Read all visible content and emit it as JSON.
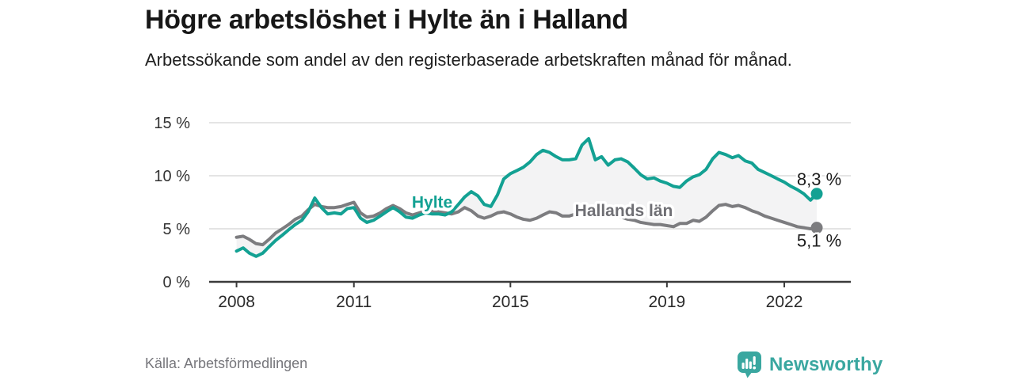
{
  "header": {
    "title": "Högre arbetslöshet i Hylte än i Halland",
    "subtitle": "Arbetssökande som andel av den registerbaserade arbetskraften månad för månad."
  },
  "footer": {
    "source": "Källa: Arbetsförmedlingen",
    "brand": "Newsworthy"
  },
  "colors": {
    "background": "#ffffff",
    "title_text": "#171717",
    "body_text": "#1f1f1f",
    "axis": "#3a3a3a",
    "tick_text": "#333333",
    "grid": "#dcdcdc",
    "fill_between": "#f3f3f4",
    "hylte_teal": "#13a193",
    "halland_gray": "#7c7c7f",
    "halland_label_gray": "#6f6f74",
    "value_label_text": "#1d1d1d",
    "source_text": "#76767b",
    "brand_teal": "#3aa7a0"
  },
  "chart_data": {
    "type": "line",
    "title": "Högre arbetslöshet i Hylte än i Halland",
    "subtitle": "Arbetssökande som andel av den registerbaserade arbetskraften månad för månad.",
    "xlabel": "",
    "ylabel": "",
    "unit": "%",
    "grid": "horizontal-only",
    "legend_position": "inline-labels-on-lines",
    "xlim": [
      2007.3,
      2023.7
    ],
    "ylim": [
      0,
      15
    ],
    "x_ticks": [
      {
        "value": 2008,
        "label": "2008"
      },
      {
        "value": 2011,
        "label": "2011"
      },
      {
        "value": 2015,
        "label": "2015"
      },
      {
        "value": 2019,
        "label": "2019"
      },
      {
        "value": 2022,
        "label": "2022"
      }
    ],
    "y_ticks": [
      {
        "value": 0,
        "label": "0 %"
      },
      {
        "value": 5,
        "label": "5 %"
      },
      {
        "value": 10,
        "label": "10 %"
      },
      {
        "value": 15,
        "label": "15 %"
      }
    ],
    "x": [
      2008.0,
      2008.17,
      2008.33,
      2008.5,
      2008.67,
      2008.83,
      2009.0,
      2009.17,
      2009.33,
      2009.5,
      2009.67,
      2009.83,
      2010.0,
      2010.17,
      2010.33,
      2010.5,
      2010.67,
      2010.83,
      2011.0,
      2011.17,
      2011.33,
      2011.5,
      2011.67,
      2011.83,
      2012.0,
      2012.17,
      2012.33,
      2012.5,
      2012.67,
      2012.83,
      2013.0,
      2013.17,
      2013.33,
      2013.5,
      2013.67,
      2013.83,
      2014.0,
      2014.17,
      2014.33,
      2014.5,
      2014.67,
      2014.83,
      2015.0,
      2015.17,
      2015.33,
      2015.5,
      2015.67,
      2015.83,
      2016.0,
      2016.17,
      2016.33,
      2016.5,
      2016.67,
      2016.83,
      2017.0,
      2017.17,
      2017.33,
      2017.5,
      2017.67,
      2017.83,
      2018.0,
      2018.17,
      2018.33,
      2018.5,
      2018.67,
      2018.83,
      2019.0,
      2019.17,
      2019.33,
      2019.5,
      2019.67,
      2019.83,
      2020.0,
      2020.17,
      2020.33,
      2020.5,
      2020.67,
      2020.83,
      2021.0,
      2021.17,
      2021.33,
      2021.5,
      2021.67,
      2021.83,
      2022.0,
      2022.17,
      2022.33,
      2022.5,
      2022.67,
      2022.83
    ],
    "series": [
      {
        "name": "Hylte",
        "color": "#13a193",
        "label_color": "#13a193",
        "end_label": "8,3 %",
        "end_value": 8.3,
        "label_anchor": {
          "x": 2013.0,
          "y": 7.4
        },
        "values": [
          2.9,
          3.2,
          2.7,
          2.4,
          2.7,
          3.3,
          3.9,
          4.4,
          4.9,
          5.4,
          5.8,
          6.6,
          7.9,
          7.0,
          6.4,
          6.5,
          6.4,
          6.9,
          7.0,
          6.0,
          5.6,
          5.8,
          6.2,
          6.6,
          7.0,
          6.6,
          6.1,
          6.0,
          6.3,
          6.5,
          6.4,
          6.4,
          6.3,
          6.6,
          7.3,
          8.0,
          8.5,
          8.1,
          7.3,
          7.1,
          8.2,
          9.7,
          10.2,
          10.5,
          10.8,
          11.3,
          12.0,
          12.4,
          12.2,
          11.8,
          11.5,
          11.5,
          11.6,
          12.9,
          13.5,
          11.5,
          11.8,
          11.0,
          11.5,
          11.6,
          11.3,
          10.7,
          10.1,
          9.7,
          9.8,
          9.5,
          9.3,
          9.0,
          8.9,
          9.5,
          9.9,
          10.1,
          10.6,
          11.6,
          12.2,
          12.0,
          11.7,
          11.9,
          11.4,
          11.2,
          10.6,
          10.3,
          10.0,
          9.7,
          9.4,
          9.0,
          8.7,
          8.3,
          7.7,
          8.3
        ]
      },
      {
        "name": "Hallands län",
        "color": "#7c7c7f",
        "label_color": "#6f6f74",
        "end_label": "5,1 %",
        "end_value": 5.1,
        "label_anchor": {
          "x": 2017.9,
          "y": 6.6
        },
        "values": [
          4.2,
          4.3,
          4.0,
          3.6,
          3.5,
          4.0,
          4.6,
          5.0,
          5.4,
          5.9,
          6.2,
          6.8,
          7.3,
          7.1,
          7.0,
          7.0,
          7.1,
          7.3,
          7.5,
          6.5,
          6.1,
          6.2,
          6.5,
          6.9,
          7.2,
          6.9,
          6.5,
          6.3,
          6.5,
          6.7,
          6.7,
          6.6,
          6.5,
          6.4,
          6.6,
          7.0,
          6.7,
          6.2,
          6.0,
          6.2,
          6.5,
          6.6,
          6.4,
          6.1,
          5.9,
          5.8,
          6.0,
          6.3,
          6.6,
          6.5,
          6.2,
          6.2,
          6.4,
          6.5,
          6.6,
          6.5,
          6.4,
          6.3,
          6.2,
          6.1,
          5.9,
          5.8,
          5.6,
          5.5,
          5.4,
          5.4,
          5.3,
          5.2,
          5.5,
          5.5,
          5.8,
          5.7,
          6.1,
          6.7,
          7.2,
          7.3,
          7.1,
          7.2,
          7.0,
          6.7,
          6.5,
          6.2,
          6.0,
          5.8,
          5.6,
          5.4,
          5.2,
          5.1,
          5.0,
          5.1
        ]
      }
    ]
  }
}
